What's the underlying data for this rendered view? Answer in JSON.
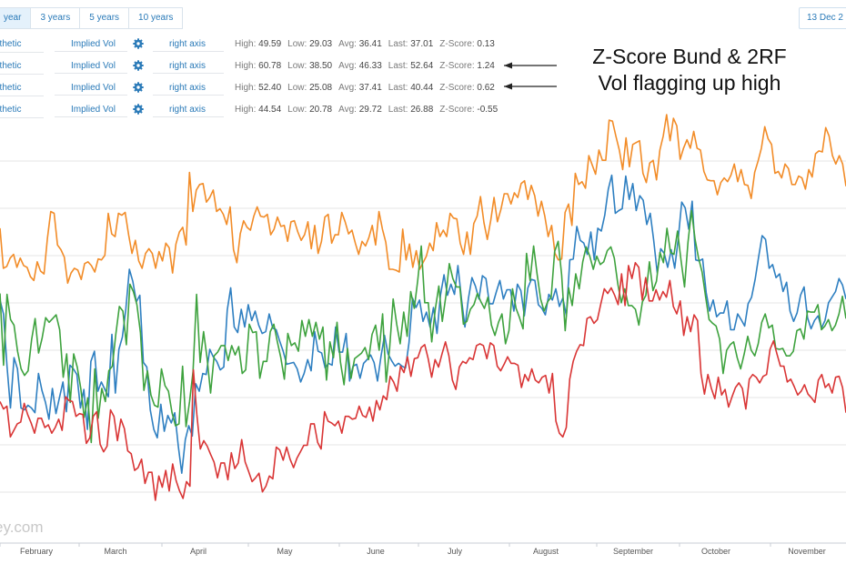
{
  "range_tabs": [
    "year",
    "3 years",
    "5 years",
    "10 years"
  ],
  "date_label": "13 Dec 2",
  "series_rows": [
    {
      "name": "nthetic",
      "type": "Implied Vol",
      "axis": "right axis",
      "high": "49.59",
      "low": "29.03",
      "avg": "36.41",
      "last": "37.01",
      "z": "0.13"
    },
    {
      "name": "nthetic",
      "type": "Implied Vol",
      "axis": "right axis",
      "high": "60.78",
      "low": "38.50",
      "avg": "46.33",
      "last": "52.64",
      "z": "1.24"
    },
    {
      "name": "nthetic",
      "type": "Implied Vol",
      "axis": "right axis",
      "high": "52.40",
      "low": "25.08",
      "avg": "37.41",
      "last": "40.44",
      "z": "0.62"
    },
    {
      "name": "nthetic",
      "type": "Implied Vol",
      "axis": "right axis",
      "high": "44.54",
      "low": "20.78",
      "avg": "29.72",
      "last": "26.88",
      "z": "-0.55"
    }
  ],
  "stat_labels": {
    "high": "High:",
    "low": "Low:",
    "avg": "Avg:",
    "last": "Last:",
    "z": "Z-Score:"
  },
  "annotation": {
    "line1": "Z-Score Bund & 2RF",
    "line2": "Vol flagging up high"
  },
  "watermark": "ey.com",
  "colors": {
    "accent": "#2a7ab8",
    "grid": "#e6e6e6"
  },
  "chart_data": {
    "type": "line",
    "ylim": [
      18,
      64
    ],
    "grid": true,
    "x_ticks": [
      "February",
      "March",
      "April",
      "May",
      "June",
      "July",
      "August",
      "September",
      "October",
      "November"
    ],
    "series": [
      {
        "color": "#2e7fc1",
        "values": [
          44.1,
          42.6,
          37.0,
          32.5,
          37.9,
          36.7,
          32.5,
          32.3,
          32.8,
          32.5,
          32.0,
          36.2,
          34.4,
          33.1,
          31.3,
          34.6,
          31.9,
          33.6,
          35.3,
          32.1,
          37.1,
          36.7,
          36.1,
          32.5,
          34.5,
          30.2,
          37.5,
          38.6,
          34.3,
          35.3,
          34.5,
          33.7,
          40.4,
          34.1,
          38.8,
          40.1,
          43.1,
          47.4,
          46.1,
          43.9,
          44.6,
          37.4,
          36.9,
          32.3,
          30.2,
          29.3,
          32.9,
          30.0,
          31.7,
          30.9,
          32.0,
          28.4,
          25.5,
          29.1,
          30.6,
          29.5,
          35.1,
          34.3,
          36.2,
          36.1,
          38.8,
          38.0,
          37.5,
          36.6,
          36.9,
          43.0,
          45.4,
          41.2,
          40.6,
          43.1,
          41.2,
          43.6,
          41.9,
          42.9,
          41.4,
          40.5,
          40.7,
          42.6,
          41.1,
          40.9,
          39.7,
          38.6,
          37.2,
          37.3,
          37.4,
          36.7,
          35.3,
          36.2,
          37.7,
          36.5,
          40.7,
          38.6,
          38.4,
          36.8,
          37.3,
          37.1,
          41.2,
          38.5,
          38.5,
          40.5,
          35.4,
          37.0,
          37.2,
          35.7,
          37.3,
          37.7,
          38.2,
          37.4,
          35.4,
          38.1,
          40.3,
          38.3,
          37.6,
          37.0,
          37.3,
          37.0,
          36.8,
          39.5,
          44.3,
          43.3,
          44.1,
          41.8,
          42.8,
          41.2,
          43.3,
          40.5,
          44.6,
          46.8,
          44.6,
          45.8,
          44.7,
          47.8,
          44.2,
          41.2,
          44.3,
          46.5,
          45.6,
          44.2,
          46.7,
          46.4,
          43.7,
          43.7,
          45.0,
          46.2,
          44.2,
          45.2,
          45.2,
          42.9,
          45.8,
          45.1,
          42.4,
          45.4,
          46.3,
          46.2,
          43.6,
          43.2,
          42.5,
          44.7,
          44.1,
          45.3,
          43.4,
          44.3,
          42.4,
          48.4,
          48.5,
          52.0,
          50.5,
          50.2,
          49.0,
          51.4,
          48.4,
          51.8,
          51.5,
          53.2,
          56.0,
          57.5,
          53.4,
          53.7,
          53.9,
          57.4,
          54.9,
          56.6,
          53.7,
          55.3,
          54.8,
          52.2,
          53.4,
          50.5,
          47.0,
          49.6,
          49.1,
          47.6,
          49.5,
          47.5,
          50.6,
          54.6,
          54.0,
          51.7,
          54.7,
          48.4,
          48.3,
          48.5,
          44.9,
          42.9,
          44.1,
          42.3,
          42.7,
          42.7,
          44.0,
          40.9,
          40.9,
          42.6,
          42.0,
          41.3,
          43.7,
          44.4,
          46.3,
          48.7,
          51.0,
          50.6,
          47.5,
          47.9,
          46.5,
          46.9,
          45.0,
          46.0,
          42.9,
          41.8,
          42.7,
          44.6,
          45.5,
          42.2,
          41.0,
          41.9,
          42.4,
          41.1,
          41.9,
          43.8,
          44.4,
          45.0,
          46.4,
          45.7,
          44.2
        ]
      },
      {
        "color": "#f28c28",
        "values": [
          51.8,
          47.5,
          47.7,
          48.6,
          49.0,
          47.6,
          48.6,
          47.8,
          47.6,
          46.6,
          46.2,
          48.2,
          47.2,
          46.9,
          50.7,
          53.6,
          53.4,
          50.0,
          49.5,
          48.7,
          45.9,
          47.0,
          47.5,
          47.3,
          46.3,
          48.0,
          48.2,
          47.8,
          47.1,
          48.5,
          48.4,
          48.9,
          53.4,
          51.2,
          50.9,
          53.4,
          53.2,
          53.5,
          51.1,
          49.1,
          50.5,
          48.3,
          47.5,
          49.1,
          49.6,
          49.1,
          47.5,
          49.3,
          48.3,
          50.2,
          49.7,
          47.0,
          50.1,
          51.4,
          51.9,
          50.0,
          57.8,
          53.6,
          55.9,
          56.5,
          56.6,
          54.6,
          55.1,
          55.9,
          53.6,
          53.9,
          53.3,
          52.2,
          54.1,
          49.5,
          48.1,
          51.2,
          52.6,
          51.9,
          51.6,
          53.1,
          54.1,
          53.1,
          53.0,
          53.3,
          51.1,
          51.7,
          53.0,
          52.0,
          52.1,
          50.4,
          52.5,
          52.6,
          51.4,
          50.5,
          51.1,
          52.5,
          49.6,
          52.1,
          49.1,
          50.4,
          53.0,
          53.3,
          50.2,
          51.1,
          51.1,
          53.5,
          52.5,
          51.2,
          51.6,
          50.2,
          49.0,
          50.4,
          49.9,
          50.8,
          52.1,
          50.0,
          53.6,
          51.7,
          50.3,
          47.4,
          47.4,
          47.3,
          47.1,
          51.7,
          48.4,
          50.1,
          47.6,
          49.4,
          47.4,
          48.1,
          48.8,
          50.2,
          49.4,
          52.4,
          50.9,
          51.6,
          50.9,
          53.4,
          52.9,
          52.8,
          50.2,
          49.0,
          51.4,
          49.0,
          52.3,
          53.1,
          55.2,
          52.4,
          50.6,
          52.6,
          55.1,
          52.5,
          53.8,
          55.5,
          55.5,
          54.4,
          55.6,
          55.1,
          56.6,
          56.9,
          54.9,
          56.4,
          55.3,
          53.1,
          54.7,
          53.1,
          50.9,
          52.1,
          49.1,
          48.4,
          48.5,
          53.5,
          54.4,
          52.1,
          57.7,
          56.5,
          56.8,
          56.1,
          59.6,
          58.6,
          57.6,
          60.2,
          59.1,
          59.1,
          63.4,
          63.3,
          61.7,
          60.2,
          58.1,
          61.5,
          58.4,
          60.8,
          61.0,
          61.2,
          57.7,
          56.7,
          58.8,
          59.1,
          57.0,
          60.2,
          61.7,
          64.0,
          61.2,
          63.6,
          62.8,
          59.2,
          60.4,
          61.3,
          60.4,
          62.2,
          60.4,
          60.2,
          57.9,
          57.0,
          56.9,
          56.9,
          55.4,
          56.7,
          57.2,
          56.8,
          57.5,
          58.7,
          56.8,
          58.1,
          56.5,
          56.4,
          55.0,
          57.8,
          59.0,
          60.4,
          62.7,
          61.4,
          60.8,
          57.7,
          57.9,
          57.2,
          58.7,
          58.2,
          56.5,
          56.5,
          57.4,
          57.2,
          56.0,
          58.1,
          57.3,
          59.8,
          60.1,
          60.0,
          62.6,
          61.7,
          59.6,
          58.7,
          59.6,
          58.7,
          56.3
        ]
      },
      {
        "color": "#3ea23e",
        "values": [
          44.8,
          37.1,
          44.7,
          42.0,
          41.4,
          38.6,
          36.7,
          36.0,
          36.5,
          39.8,
          42.1,
          38.4,
          40.0,
          42.2,
          41.7,
          42.1,
          42.5,
          40.9,
          35.8,
          38.3,
          33.1,
          38.3,
          36.9,
          34.6,
          31.5,
          33.6,
          28.8,
          36.7,
          31.4,
          34.6,
          33.2,
          36.5,
          37.0,
          40.4,
          43.4,
          42.9,
          39.3,
          45.8,
          45.0,
          43.6,
          40.6,
          34.4,
          36.5,
          33.9,
          32.8,
          32.6,
          36.7,
          34.9,
          34.3,
          32.0,
          30.6,
          30.8,
          37.0,
          30.5,
          33.2,
          36.4,
          44.7,
          37.4,
          40.7,
          37.8,
          34.1,
          38.1,
          38.5,
          39.2,
          39.2,
          37.6,
          39.2,
          38.2,
          39.1,
          36.2,
          36.6,
          41.5,
          40.6,
          40.7,
          35.7,
          37.5,
          37.5,
          40.7,
          41.5,
          39.6,
          37.9,
          35.6,
          40.5,
          39.2,
          39.5,
          38.6,
          41.9,
          40.2,
          42.0,
          40.2,
          41.7,
          39.9,
          41.2,
          35.5,
          39.6,
          37.9,
          41.7,
          37.4,
          35.0,
          38.9,
          35.7,
          37.8,
          38.1,
          38.4,
          39.0,
          37.7,
          40.4,
          41.4,
          38.7,
          42.6,
          35.3,
          38.9,
          44.2,
          41.5,
          39.4,
          42.8,
          40.2,
          45.0,
          43.2,
          46.2,
          49.9,
          43.8,
          43.8,
          39.6,
          43.1,
          45.6,
          41.8,
          44.5,
          48.0,
          46.4,
          45.5,
          45.5,
          41.5,
          41.8,
          43.1,
          43.6,
          44.8,
          43.9,
          43.2,
          44.4,
          41.4,
          40.3,
          41.7,
          42.6,
          39.4,
          40.8,
          45.3,
          43.2,
          42.2,
          41.0,
          49.1,
          46.2,
          49.9,
          46.9,
          44.2,
          42.9,
          43.9,
          44.4,
          49.3,
          50.4,
          46.8,
          40.8,
          45.4,
          43.5,
          46.9,
          45.3,
          48.2,
          49.8,
          48.8,
          47.4,
          48.8,
          47.9,
          48.2,
          49.4,
          49.8,
          48.6,
          45.8,
          43.8,
          45.3,
          43.5,
          43.5,
          43.1,
          41.4,
          43.9,
          44.6,
          48.2,
          45.1,
          46.1,
          49.2,
          48.1,
          51.8,
          49.2,
          49.0,
          51.5,
          48.4,
          45.5,
          50.3,
          53.7,
          50.6,
          48.6,
          47.1,
          44.5,
          42.0,
          41.6,
          41.3,
          39.9,
          36.2,
          38.7,
          39.3,
          39.6,
          37.9,
          36.7,
          38.3,
          40.2,
          38.7,
          38.1,
          39.4,
          41.7,
          42.6,
          41.1,
          41.4,
          38.9,
          38.8,
          38.9,
          38.1,
          38.1,
          38.6,
          40.8,
          41.0,
          39.9,
          42.9,
          42.8,
          42.8,
          43.6,
          40.9,
          41.3,
          42.0,
          40.8,
          41.4,
          42.6,
          44.5,
          42.1
        ]
      },
      {
        "color": "#d93535",
        "values": [
          33.2,
          32.4,
          32.7,
          29.4,
          30.1,
          30.8,
          31.0,
          33.0,
          31.8,
          30.9,
          29.8,
          31.4,
          31.4,
          30.4,
          30.7,
          29.8,
          30.4,
          31.3,
          30.1,
          33.7,
          33.3,
          33.2,
          31.6,
          31.9,
          31.8,
          28.7,
          29.3,
          31.6,
          32.1,
          28.6,
          27.8,
          28.4,
          32.3,
          31.6,
          29.0,
          31.3,
          30.3,
          27.9,
          27.6,
          25.8,
          26.1,
          27.0,
          24.4,
          25.6,
          25.6,
          22.6,
          25.2,
          24.0,
          25.8,
          23.6,
          26.5,
          24.7,
          23.6,
          22.8,
          24.6,
          24.1,
          36.6,
          31.8,
          28.1,
          29.0,
          28.4,
          27.5,
          26.7,
          25.0,
          26.6,
          26.6,
          24.8,
          27.7,
          26.0,
          26.6,
          29.1,
          26.7,
          25.7,
          24.6,
          25.0,
          25.5,
          23.5,
          24.1,
          25.2,
          24.9,
          28.3,
          28.0,
          26.9,
          28.3,
          27.0,
          26.1,
          27.1,
          27.8,
          28.5,
          28.5,
          30.8,
          30.8,
          28.8,
          28.1,
          32.1,
          31.1,
          30.9,
          30.6,
          31.1,
          29.8,
          31.6,
          31.6,
          31.3,
          31.4,
          32.7,
          31.7,
          31.5,
          32.6,
          31.1,
          33.3,
          32.3,
          33.8,
          33.4,
          35.9,
          35.3,
          34.3,
          37.0,
          36.3,
          38.0,
          35.9,
          37.8,
          37.9,
          39.0,
          39.3,
          37.8,
          35.8,
          37.7,
          36.9,
          38.3,
          39.6,
          38.1,
          35.5,
          34.5,
          36.9,
          37.5,
          37.3,
          37.9,
          37.7,
          39.2,
          39.4,
          39.2,
          37.8,
          39.5,
          39.2,
          37.0,
          36.5,
          37.2,
          38.0,
          37.3,
          37.3,
          37.1,
          34.7,
          36.1,
          35.4,
          36.7,
          35.5,
          35.2,
          35.8,
          36.0,
          34.1,
          36.2,
          31.1,
          29.8,
          29.4,
          30.4,
          35.6,
          37.5,
          38.6,
          39.3,
          39.2,
          42.1,
          42.3,
          41.6,
          42.0,
          43.7,
          45.3,
          44.8,
          45.4,
          44.6,
          43.6,
          46.9,
          43.5,
          47.8,
          46.4,
          48.1,
          47.6,
          44.1,
          46.5,
          44.0,
          44.0,
          45.2,
          44.1,
          45.0,
          44.4,
          46.2,
          43.4,
          42.6,
          44.0,
          40.3,
          42.3,
          40.7,
          42.5,
          41.9,
          36.2,
          34.0,
          36.1,
          34.6,
          33.5,
          35.8,
          33.9,
          34.5,
          32.6,
          33.7,
          34.7,
          35.2,
          34.6,
          32.4,
          35.6,
          36.1,
          35.8,
          35.2,
          35.9,
          36.1,
          38.8,
          39.7,
          38.3,
          37.0,
          37.0,
          35.3,
          35.6,
          34.8,
          33.9,
          34.3,
          35.0,
          34.0,
          33.6,
          33.1,
          35.5,
          36.1,
          34.7,
          35.1,
          34.1,
          35.8,
          35.9,
          34.7,
          32.0
        ]
      }
    ]
  }
}
